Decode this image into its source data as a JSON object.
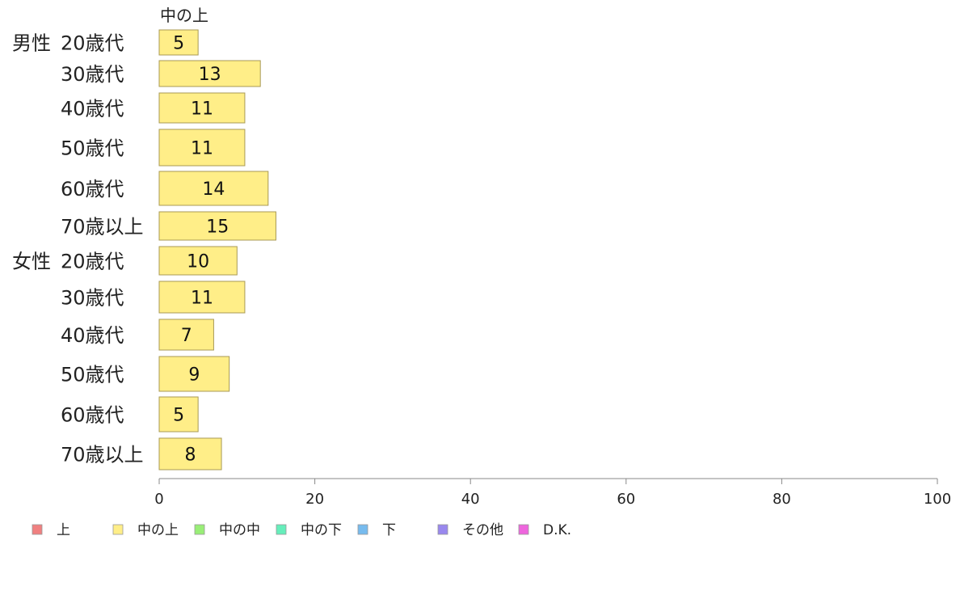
{
  "chart_data": {
    "type": "bar",
    "orientation": "horizontal",
    "series_header": "中の上",
    "categories": [
      {
        "group": "男性",
        "label": "20歳代"
      },
      {
        "group": "",
        "label": "30歳代"
      },
      {
        "group": "",
        "label": "40歳代"
      },
      {
        "group": "",
        "label": "50歳代"
      },
      {
        "group": "",
        "label": "60歳代"
      },
      {
        "group": "",
        "label": "70歳以上"
      },
      {
        "group": "女性",
        "label": "20歳代"
      },
      {
        "group": "",
        "label": "30歳代"
      },
      {
        "group": "",
        "label": "40歳代"
      },
      {
        "group": "",
        "label": "50歳代"
      },
      {
        "group": "",
        "label": "60歳代"
      },
      {
        "group": "",
        "label": "70歳以上"
      }
    ],
    "series": [
      {
        "name": "中の上",
        "color": "#FFEE88",
        "values": [
          5,
          13,
          11,
          11,
          14,
          15,
          10,
          11,
          7,
          9,
          5,
          8
        ]
      }
    ],
    "xlim": [
      0,
      100
    ],
    "xticks": [
      0,
      20,
      40,
      60,
      80,
      100
    ],
    "grid": false,
    "legend_position": "bottom",
    "legend": [
      {
        "label": "上",
        "color": "#F08080"
      },
      {
        "label": "中の上",
        "color": "#FFEE88"
      },
      {
        "label": "中の中",
        "color": "#99EE77"
      },
      {
        "label": "中の下",
        "color": "#66EEBB"
      },
      {
        "label": "下",
        "color": "#77BBEE"
      },
      {
        "label": "その他",
        "color": "#9988EE"
      },
      {
        "label": "D.K.",
        "color": "#EE66DD"
      }
    ],
    "bar_border_color": "#A89A55",
    "axis_color": "#888888"
  }
}
